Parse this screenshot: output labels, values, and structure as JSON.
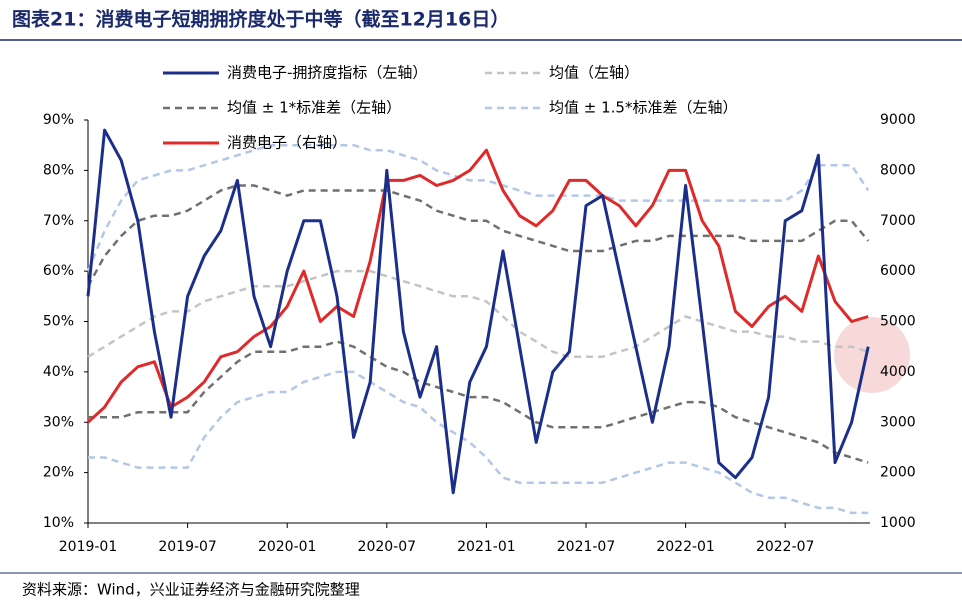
{
  "chart_data": {
    "type": "line",
    "title": "图表21：消费电子短期拥挤度处于中等（截至12月16日）",
    "source": "资料来源：Wind，兴业证券经济与金融研究院整理",
    "x": [
      "2019-01",
      "2019-02",
      "2019-03",
      "2019-04",
      "2019-05",
      "2019-06",
      "2019-07",
      "2019-08",
      "2019-09",
      "2019-10",
      "2019-11",
      "2019-12",
      "2020-01",
      "2020-02",
      "2020-03",
      "2020-04",
      "2020-05",
      "2020-06",
      "2020-07",
      "2020-08",
      "2020-09",
      "2020-10",
      "2020-11",
      "2020-12",
      "2021-01",
      "2021-02",
      "2021-03",
      "2021-04",
      "2021-05",
      "2021-06",
      "2021-07",
      "2021-08",
      "2021-09",
      "2021-10",
      "2021-11",
      "2021-12",
      "2022-01",
      "2022-02",
      "2022-03",
      "2022-04",
      "2022-05",
      "2022-06",
      "2022-07",
      "2022-08",
      "2022-09",
      "2022-10",
      "2022-11",
      "2022-12"
    ],
    "xticks": [
      "2019-01",
      "2019-07",
      "2020-01",
      "2020-07",
      "2021-01",
      "2021-07",
      "2022-01",
      "2022-07"
    ],
    "ylim": [
      10,
      90
    ],
    "yticks": [
      {
        "value": 10,
        "label": "10%"
      },
      {
        "value": 20,
        "label": "20%"
      },
      {
        "value": 30,
        "label": "30%"
      },
      {
        "value": 40,
        "label": "40%"
      },
      {
        "value": 50,
        "label": "50%"
      },
      {
        "value": 60,
        "label": "60%"
      },
      {
        "value": 70,
        "label": "70%"
      },
      {
        "value": 80,
        "label": "80%"
      },
      {
        "value": 90,
        "label": "90%"
      }
    ],
    "y2lim": [
      1000,
      9000
    ],
    "y2ticks": [
      1000,
      2000,
      3000,
      4000,
      5000,
      6000,
      7000,
      8000,
      9000
    ],
    "series": [
      {
        "name": "消费电子-拥挤度指标（左轴）",
        "color": "#1b2f8a",
        "dash": false,
        "width": 3,
        "values": [
          55,
          88,
          82,
          70,
          48,
          31,
          55,
          63,
          68,
          78,
          55,
          45,
          60,
          70,
          70,
          55,
          27,
          38,
          80,
          48,
          35,
          45,
          16,
          38,
          45,
          64,
          45,
          26,
          40,
          44,
          73,
          75,
          60,
          45,
          30,
          45,
          77,
          50,
          22,
          19,
          23,
          35,
          70,
          72,
          83,
          22,
          30,
          45
        ]
      },
      {
        "name": "均值（左轴）",
        "color": "#c4c4c4",
        "dash": true,
        "width": 2.5,
        "values": [
          43,
          45,
          47,
          49,
          51,
          52,
          52,
          54,
          55,
          56,
          57,
          57,
          57,
          58,
          59,
          60,
          60,
          60,
          59,
          58,
          57,
          56,
          55,
          55,
          54,
          51,
          48,
          46,
          44,
          43,
          43,
          43,
          44,
          45,
          47,
          49,
          51,
          50,
          49,
          48,
          48,
          47,
          47,
          46,
          46,
          45,
          45,
          44
        ]
      },
      {
        "name": "均值 ± 1*标准差（左轴）",
        "color": "#707070",
        "dash": true,
        "width": 2.5,
        "upper": [
          57,
          63,
          67,
          70,
          71,
          71,
          72,
          74,
          76,
          77,
          77,
          76,
          75,
          76,
          76,
          76,
          76,
          76,
          76,
          75,
          74,
          72,
          71,
          70,
          70,
          68,
          67,
          66,
          65,
          64,
          64,
          64,
          65,
          66,
          66,
          67,
          67,
          67,
          67,
          67,
          66,
          66,
          66,
          66,
          68,
          70,
          70,
          66
        ],
        "lower": [
          31,
          31,
          31,
          32,
          32,
          32,
          32,
          36,
          39,
          42,
          44,
          44,
          44,
          45,
          45,
          46,
          45,
          43,
          41,
          40,
          38,
          37,
          36,
          35,
          35,
          34,
          32,
          30,
          29,
          29,
          29,
          29,
          30,
          31,
          32,
          33,
          34,
          34,
          33,
          31,
          30,
          29,
          28,
          27,
          26,
          24,
          23,
          22
        ]
      },
      {
        "name": "均值 ± 1.5*标准差（左轴）",
        "color": "#b4c7e7",
        "dash": true,
        "width": 2.5,
        "upper": [
          60,
          68,
          74,
          78,
          79,
          80,
          80,
          81,
          82,
          83,
          84,
          85,
          85,
          85,
          85,
          85,
          85,
          84,
          84,
          83,
          82,
          80,
          79,
          78,
          78,
          77,
          76,
          75,
          75,
          75,
          75,
          75,
          74,
          74,
          74,
          74,
          74,
          74,
          74,
          74,
          74,
          74,
          74,
          76,
          81,
          81,
          81,
          76
        ],
        "lower": [
          23,
          23,
          22,
          21,
          21,
          21,
          21,
          27,
          31,
          34,
          35,
          36,
          36,
          38,
          39,
          40,
          40,
          38,
          36,
          34,
          33,
          30,
          28,
          26,
          23,
          19,
          18,
          18,
          18,
          18,
          18,
          18,
          19,
          20,
          21,
          22,
          22,
          21,
          20,
          18,
          16,
          15,
          15,
          14,
          13,
          13,
          12,
          12
        ]
      },
      {
        "name": "消费电子（右轴）",
        "color": "#e02a2a",
        "dash": false,
        "width": 3,
        "axis": "y2",
        "values": [
          3000,
          3300,
          3800,
          4100,
          4200,
          3300,
          3500,
          3800,
          4300,
          4400,
          4700,
          4900,
          5300,
          6000,
          5000,
          5300,
          5100,
          6200,
          7800,
          7800,
          7900,
          7700,
          7800,
          8000,
          8400,
          7600,
          7100,
          6900,
          7200,
          7800,
          7800,
          7500,
          7300,
          6900,
          7300,
          8000,
          8000,
          7000,
          6500,
          5200,
          4900,
          5300,
          5500,
          5200,
          6300,
          5400,
          5000,
          5100
        ]
      }
    ]
  }
}
